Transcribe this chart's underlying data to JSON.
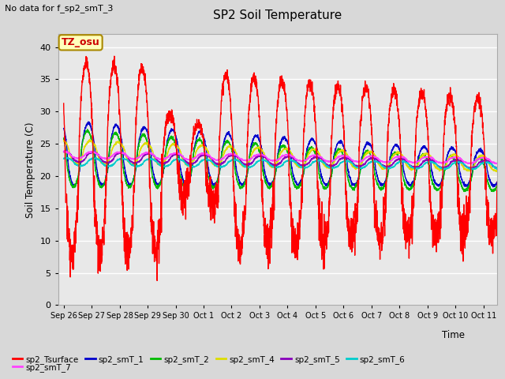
{
  "title": "SP2 Soil Temperature",
  "ylabel": "Soil Temperature (C)",
  "xlabel": "Time",
  "note": "No data for f_sp2_smT_3",
  "tz_label": "TZ_osu",
  "ylim": [
    0,
    42
  ],
  "yticks": [
    0,
    5,
    10,
    15,
    20,
    25,
    30,
    35,
    40
  ],
  "plot_bg": "#e8e8e8",
  "fig_bg": "#d8d8d8",
  "legend": [
    {
      "label": "sp2_Tsurface",
      "color": "#ff0000"
    },
    {
      "label": "sp2_smT_1",
      "color": "#0000cc"
    },
    {
      "label": "sp2_smT_2",
      "color": "#00bb00"
    },
    {
      "label": "sp2_smT_4",
      "color": "#dddd00"
    },
    {
      "label": "sp2_smT_5",
      "color": "#8800bb"
    },
    {
      "label": "sp2_smT_6",
      "color": "#00cccc"
    },
    {
      "label": "sp2_smT_7",
      "color": "#ff44ff"
    }
  ],
  "x_tick_labels": [
    "Sep 26",
    "Sep 27",
    "Sep 28",
    "Sep 29",
    "Sep 30",
    "Oct 1",
    "Oct 2",
    "Oct 3",
    "Oct 4",
    "Oct 5",
    "Oct 6",
    "Oct 7",
    "Oct 8",
    "Oct 9",
    "Oct 10",
    "Oct 11"
  ],
  "x_tick_positions": [
    0,
    1,
    2,
    3,
    4,
    5,
    6,
    7,
    8,
    9,
    10,
    11,
    12,
    13,
    14,
    15
  ]
}
